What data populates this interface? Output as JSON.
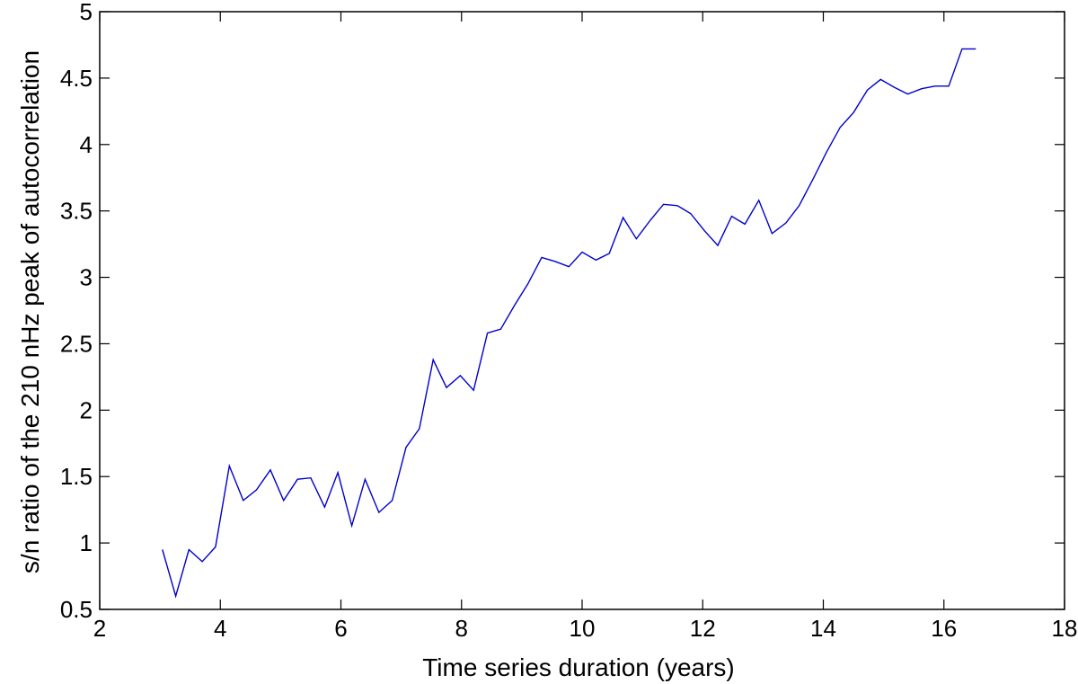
{
  "chart_data": {
    "type": "line",
    "title": "",
    "xlabel": "Time series duration (years)",
    "ylabel": "s/n ratio of the 210 nHz peak of autocorrelation",
    "xlim": [
      2,
      18
    ],
    "ylim": [
      0.5,
      5
    ],
    "xticks": [
      2,
      4,
      6,
      8,
      10,
      12,
      14,
      16,
      18
    ],
    "yticks": [
      0.5,
      1,
      1.5,
      2,
      2.5,
      3,
      3.5,
      4,
      4.5,
      5
    ],
    "xtick_labels": [
      "2",
      "4",
      "6",
      "8",
      "10",
      "12",
      "14",
      "16",
      "18"
    ],
    "ytick_labels": [
      "0.5",
      "1",
      "1.5",
      "2",
      "2.5",
      "3",
      "3.5",
      "4",
      "4.5",
      "5"
    ],
    "grid": false,
    "legend": "none",
    "series": [
      {
        "color": "#0000cc",
        "x": [
          3.04,
          3.26,
          3.48,
          3.7,
          3.92,
          4.15,
          4.38,
          4.6,
          4.83,
          5.05,
          5.28,
          5.5,
          5.73,
          5.95,
          6.18,
          6.4,
          6.63,
          6.85,
          7.08,
          7.3,
          7.53,
          7.75,
          7.98,
          8.2,
          8.43,
          8.65,
          8.88,
          9.1,
          9.33,
          9.55,
          9.78,
          10.0,
          10.23,
          10.45,
          10.68,
          10.9,
          11.13,
          11.35,
          11.58,
          11.8,
          12.03,
          12.25,
          12.48,
          12.7,
          12.93,
          13.15,
          13.38,
          13.6,
          13.83,
          14.05,
          14.28,
          14.5,
          14.73,
          14.95,
          15.18,
          15.4,
          15.63,
          15.85,
          16.08,
          16.3,
          16.53
        ],
        "y": [
          0.95,
          0.6,
          0.95,
          0.86,
          0.97,
          1.58,
          1.32,
          1.4,
          1.55,
          1.32,
          1.48,
          1.49,
          1.27,
          1.53,
          1.13,
          1.48,
          1.23,
          1.32,
          1.72,
          1.86,
          2.38,
          2.17,
          2.26,
          2.15,
          2.58,
          2.61,
          2.79,
          2.95,
          3.15,
          3.12,
          3.08,
          3.19,
          3.13,
          3.18,
          3.45,
          3.29,
          3.43,
          3.55,
          3.54,
          3.48,
          3.35,
          3.24,
          3.46,
          3.4,
          3.58,
          3.33,
          3.41,
          3.54,
          3.74,
          3.94,
          4.13,
          4.24,
          4.41,
          4.49,
          4.43,
          4.38,
          4.42,
          4.44,
          4.44,
          4.72,
          4.72
        ]
      }
    ]
  }
}
